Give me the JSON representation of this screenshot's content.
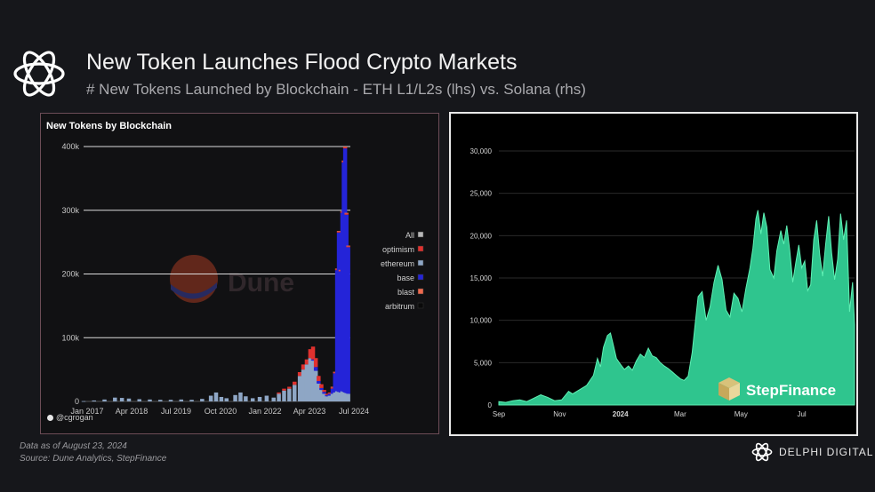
{
  "header": {
    "title": "New Token Launches Flood Crypto Markets",
    "subtitle": "# New Tokens Launched by Blockchain - ETH L1/L2s (lhs) vs. Solana (rhs)"
  },
  "left_panel": {
    "title": "New Tokens by Blockchain",
    "watermark": "Dune",
    "user_handle": "@cgrogan"
  },
  "right_panel": {
    "watermark": "StepFinance"
  },
  "footer": {
    "date_note": "Data as of August 23, 2024",
    "source_note": "Source: Dune Analytics, StepFinance",
    "brand": "DELPHI DIGITAL"
  },
  "colors": {
    "background": "#16171b",
    "all": "#b8b8b8",
    "optimism": "#e0312e",
    "ethereum": "#8ea6c5",
    "base": "#2424d8",
    "blast": "#ef6a4f",
    "arbitrum": "#0a0a0a",
    "solana_area": "#2fc58e"
  },
  "chart_data": [
    {
      "type": "bar",
      "title": "New Tokens by Blockchain",
      "stacked": true,
      "x_ticks": [
        "Jan 2017",
        "Apr 2018",
        "Jul 2019",
        "Oct 2020",
        "Jan 2022",
        "Apr 2023",
        "Jul 2024"
      ],
      "y_ticks": [
        "0",
        "100k",
        "200k",
        "300k",
        "400k"
      ],
      "ylim": [
        0,
        400000
      ],
      "grid": true,
      "legend_position": "right",
      "legend": [
        "All",
        "optimism",
        "ethereum",
        "base",
        "blast",
        "arbitrum"
      ],
      "series_order": [
        "ethereum",
        "base",
        "optimism",
        "blast"
      ],
      "series_colors": {
        "ethereum": "#8ea6c5",
        "base": "#2424d8",
        "optimism": "#e0312e",
        "blast": "#ef6a4f"
      },
      "x_start": 2017.0,
      "x_end": 2024.65,
      "points": [
        {
          "x": 2017.0,
          "ethereum": 500
        },
        {
          "x": 2017.3,
          "ethereum": 1500
        },
        {
          "x": 2017.6,
          "ethereum": 3000
        },
        {
          "x": 2017.9,
          "ethereum": 6000
        },
        {
          "x": 2018.1,
          "ethereum": 5500
        },
        {
          "x": 2018.3,
          "ethereum": 4500
        },
        {
          "x": 2018.6,
          "ethereum": 3500
        },
        {
          "x": 2018.9,
          "ethereum": 3000
        },
        {
          "x": 2019.2,
          "ethereum": 2500
        },
        {
          "x": 2019.5,
          "ethereum": 2500
        },
        {
          "x": 2019.8,
          "ethereum": 3000
        },
        {
          "x": 2020.1,
          "ethereum": 2500
        },
        {
          "x": 2020.4,
          "ethereum": 4000
        },
        {
          "x": 2020.65,
          "ethereum": 9000
        },
        {
          "x": 2020.8,
          "ethereum": 14000
        },
        {
          "x": 2020.95,
          "ethereum": 7000
        },
        {
          "x": 2021.1,
          "ethereum": 5000
        },
        {
          "x": 2021.35,
          "ethereum": 10000
        },
        {
          "x": 2021.5,
          "ethereum": 14000
        },
        {
          "x": 2021.65,
          "ethereum": 8000
        },
        {
          "x": 2021.85,
          "ethereum": 5000
        },
        {
          "x": 2022.05,
          "ethereum": 7000
        },
        {
          "x": 2022.25,
          "ethereum": 9000
        },
        {
          "x": 2022.45,
          "ethereum": 6000
        },
        {
          "x": 2022.6,
          "ethereum": 12000,
          "optimism": 2000
        },
        {
          "x": 2022.75,
          "ethereum": 17000,
          "optimism": 3000
        },
        {
          "x": 2022.9,
          "ethereum": 20000,
          "optimism": 3000
        },
        {
          "x": 2023.05,
          "ethereum": 26000,
          "optimism": 5000
        },
        {
          "x": 2023.2,
          "ethereum": 40000,
          "optimism": 6000
        },
        {
          "x": 2023.3,
          "ethereum": 50000,
          "optimism": 8000
        },
        {
          "x": 2023.4,
          "ethereum": 58000,
          "optimism": 8000
        },
        {
          "x": 2023.5,
          "ethereum": 68000,
          "optimism": 14000
        },
        {
          "x": 2023.58,
          "ethereum": 64000,
          "base": 2000,
          "optimism": 20000
        },
        {
          "x": 2023.66,
          "ethereum": 48000,
          "base": 6000,
          "optimism": 14000
        },
        {
          "x": 2023.74,
          "ethereum": 28000,
          "base": 4000,
          "optimism": 8000
        },
        {
          "x": 2023.82,
          "ethereum": 18000,
          "base": 3000,
          "optimism": 6000
        },
        {
          "x": 2023.9,
          "ethereum": 12000,
          "base": 3000,
          "optimism": 3000
        },
        {
          "x": 2023.98,
          "ethereum": 8000,
          "base": 2000,
          "optimism": 2000
        },
        {
          "x": 2024.06,
          "ethereum": 9000,
          "base": 3000,
          "optimism": 2000
        },
        {
          "x": 2024.14,
          "ethereum": 12000,
          "base": 8000,
          "optimism": 2000,
          "blast": 1000
        },
        {
          "x": 2024.21,
          "ethereum": 14000,
          "base": 30000,
          "optimism": 1500,
          "blast": 1000
        },
        {
          "x": 2024.27,
          "ethereum": 16000,
          "base": 190000,
          "optimism": 1500,
          "blast": 1000
        },
        {
          "x": 2024.32,
          "ethereum": 15000,
          "base": 250000,
          "optimism": 1500,
          "blast": 1000
        },
        {
          "x": 2024.37,
          "ethereum": 14000,
          "base": 190000,
          "optimism": 1500,
          "blast": 1000
        },
        {
          "x": 2024.42,
          "ethereum": 16000,
          "base": 280000,
          "optimism": 1500,
          "blast": 1000
        },
        {
          "x": 2024.46,
          "ethereum": 15000,
          "base": 360000,
          "optimism": 2000,
          "blast": 1000
        },
        {
          "x": 2024.5,
          "ethereum": 14000,
          "base": 383000,
          "optimism": 2000,
          "blast": 1000
        },
        {
          "x": 2024.54,
          "ethereum": 13000,
          "base": 280000,
          "optimism": 2000,
          "blast": 1000
        },
        {
          "x": 2024.59,
          "ethereum": 12000,
          "base": 230000,
          "optimism": 1500,
          "blast": 1000
        }
      ]
    },
    {
      "type": "area",
      "series_name": "",
      "color": "#2fc58e",
      "x_ticks": [
        "Sep",
        "Nov",
        "2024",
        "Mar",
        "May",
        "Jul"
      ],
      "y_ticks": [
        "0",
        "5,000",
        "10,000",
        "15,000",
        "20,000",
        "25,000",
        "30,000"
      ],
      "ylim": [
        0,
        30000
      ],
      "grid": true,
      "x_start": "2023-09-01",
      "x_end": "2024-08-23",
      "points": [
        [
          "2023-09-01",
          400
        ],
        [
          "2023-09-08",
          300
        ],
        [
          "2023-09-15",
          500
        ],
        [
          "2023-09-22",
          600
        ],
        [
          "2023-09-29",
          400
        ],
        [
          "2023-10-06",
          800
        ],
        [
          "2023-10-13",
          1200
        ],
        [
          "2023-10-20",
          900
        ],
        [
          "2023-10-27",
          500
        ],
        [
          "2023-11-03",
          600
        ],
        [
          "2023-11-10",
          1600
        ],
        [
          "2023-11-14",
          1300
        ],
        [
          "2023-11-21",
          1800
        ],
        [
          "2023-11-28",
          2300
        ],
        [
          "2023-12-05",
          3500
        ],
        [
          "2023-12-09",
          5500
        ],
        [
          "2023-12-12",
          4500
        ],
        [
          "2023-12-15",
          6800
        ],
        [
          "2023-12-19",
          8200
        ],
        [
          "2023-12-22",
          8500
        ],
        [
          "2023-12-25",
          7000
        ],
        [
          "2023-12-28",
          5500
        ],
        [
          "2024-01-01",
          4800
        ],
        [
          "2024-01-05",
          4200
        ],
        [
          "2024-01-09",
          4600
        ],
        [
          "2024-01-13",
          4100
        ],
        [
          "2024-01-17",
          5200
        ],
        [
          "2024-01-21",
          6000
        ],
        [
          "2024-01-25",
          5600
        ],
        [
          "2024-01-29",
          6700
        ],
        [
          "2024-02-02",
          5800
        ],
        [
          "2024-02-06",
          5600
        ],
        [
          "2024-02-10",
          5000
        ],
        [
          "2024-02-14",
          4600
        ],
        [
          "2024-02-18",
          4300
        ],
        [
          "2024-02-22",
          3900
        ],
        [
          "2024-02-26",
          3500
        ],
        [
          "2024-03-01",
          3100
        ],
        [
          "2024-03-05",
          2900
        ],
        [
          "2024-03-09",
          3400
        ],
        [
          "2024-03-13",
          6200
        ],
        [
          "2024-03-16",
          9500
        ],
        [
          "2024-03-19",
          12800
        ],
        [
          "2024-03-23",
          13400
        ],
        [
          "2024-03-27",
          10000
        ],
        [
          "2024-03-31",
          11600
        ],
        [
          "2024-04-04",
          14500
        ],
        [
          "2024-04-08",
          16500
        ],
        [
          "2024-04-12",
          14800
        ],
        [
          "2024-04-16",
          11200
        ],
        [
          "2024-04-20",
          10400
        ],
        [
          "2024-04-24",
          13200
        ],
        [
          "2024-04-28",
          12600
        ],
        [
          "2024-05-02",
          11000
        ],
        [
          "2024-05-06",
          13800
        ],
        [
          "2024-05-10",
          16200
        ],
        [
          "2024-05-13",
          18500
        ],
        [
          "2024-05-16",
          22000
        ],
        [
          "2024-05-18",
          23000
        ],
        [
          "2024-05-21",
          20200
        ],
        [
          "2024-05-24",
          22700
        ],
        [
          "2024-05-27",
          21000
        ],
        [
          "2024-05-30",
          16000
        ],
        [
          "2024-06-03",
          15000
        ],
        [
          "2024-06-06",
          18200
        ],
        [
          "2024-06-10",
          20600
        ],
        [
          "2024-06-13",
          19000
        ],
        [
          "2024-06-16",
          21200
        ],
        [
          "2024-06-19",
          18200
        ],
        [
          "2024-06-22",
          14500
        ],
        [
          "2024-06-25",
          16800
        ],
        [
          "2024-06-28",
          18900
        ],
        [
          "2024-07-01",
          16200
        ],
        [
          "2024-07-04",
          17000
        ],
        [
          "2024-07-07",
          13500
        ],
        [
          "2024-07-10",
          14200
        ],
        [
          "2024-07-13",
          19500
        ],
        [
          "2024-07-16",
          21800
        ],
        [
          "2024-07-19",
          17800
        ],
        [
          "2024-07-22",
          15200
        ],
        [
          "2024-07-25",
          19000
        ],
        [
          "2024-07-28",
          22300
        ],
        [
          "2024-07-31",
          18000
        ],
        [
          "2024-08-03",
          14800
        ],
        [
          "2024-08-06",
          17200
        ],
        [
          "2024-08-09",
          22600
        ],
        [
          "2024-08-12",
          19500
        ],
        [
          "2024-08-15",
          21800
        ],
        [
          "2024-08-18",
          11000
        ],
        [
          "2024-08-21",
          14500
        ],
        [
          "2024-08-23",
          9500
        ]
      ]
    }
  ]
}
